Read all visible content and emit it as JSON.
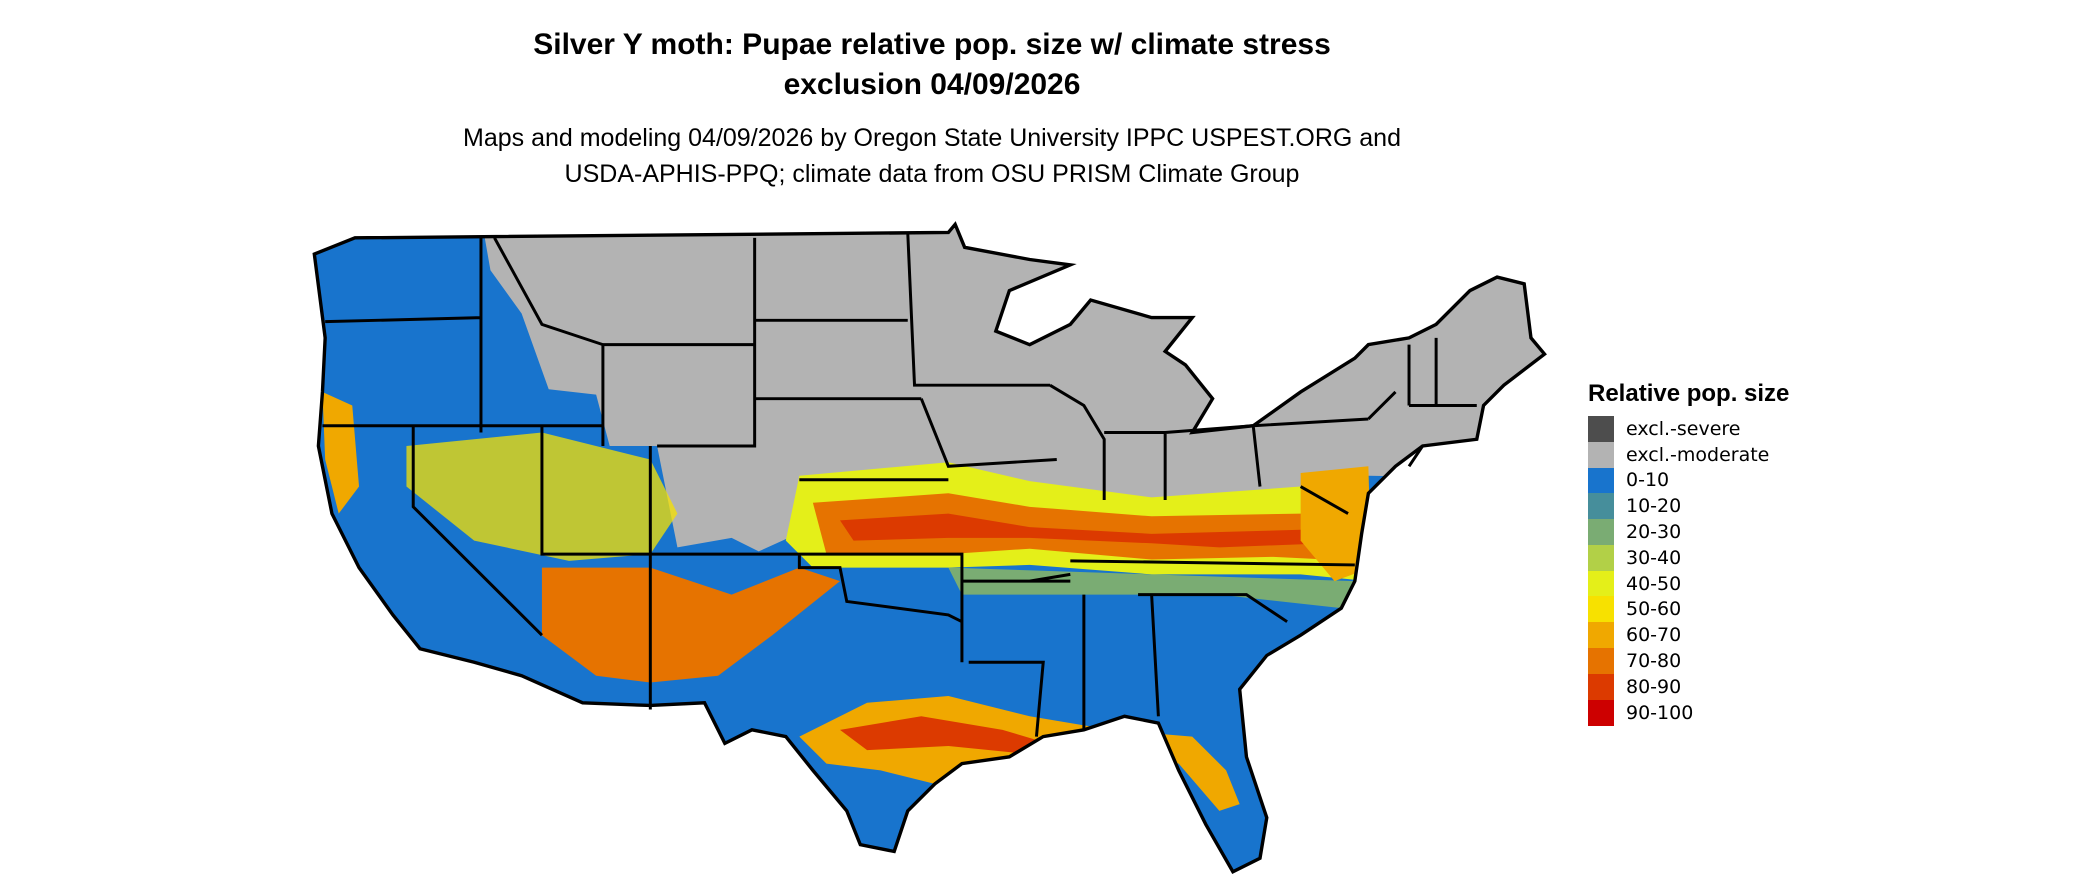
{
  "title": {
    "line1": "Silver Y moth: Pupae relative pop. size w/ climate stress",
    "line2": "exclusion 04/09/2026"
  },
  "subtitle": {
    "line1": "Maps and modeling 04/09/2026 by Oregon State University IPPC USPEST.ORG and",
    "line2": "USDA-APHIS-PPQ; climate data from OSU PRISM Climate Group"
  },
  "legend": {
    "title": "Relative pop. size",
    "items": [
      {
        "label": "excl.-severe",
        "color": "#4d4d4d"
      },
      {
        "label": "excl.-moderate",
        "color": "#b3b3b3"
      },
      {
        "label": "0-10",
        "color": "#1874cd"
      },
      {
        "label": "10-20",
        "color": "#468e9b"
      },
      {
        "label": "20-30",
        "color": "#7aac73"
      },
      {
        "label": "30-40",
        "color": "#b2d047"
      },
      {
        "label": "40-50",
        "color": "#e4ef19"
      },
      {
        "label": "50-60",
        "color": "#f7e100"
      },
      {
        "label": "60-70",
        "color": "#f0a800"
      },
      {
        "label": "70-80",
        "color": "#e67300"
      },
      {
        "label": "80-90",
        "color": "#dc3a00"
      },
      {
        "label": "90-100",
        "color": "#cd0000"
      }
    ]
  },
  "map": {
    "region": "Contiguous United States",
    "border_color": "#000000"
  }
}
